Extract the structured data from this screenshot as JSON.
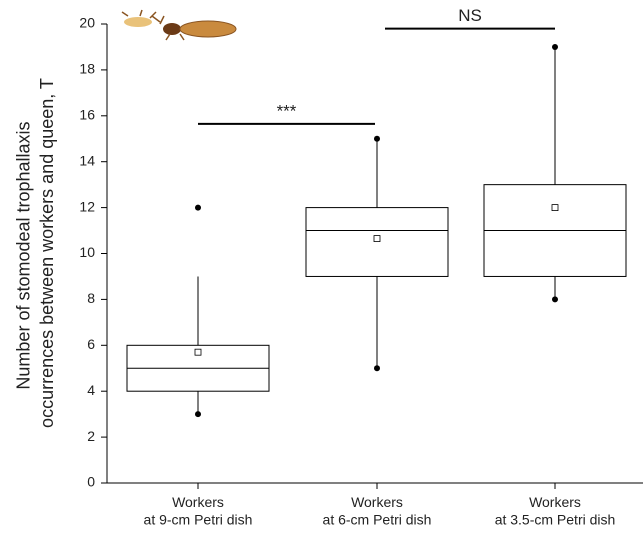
{
  "chart_data": {
    "type": "box",
    "y_label": [
      "Number of stomodeal trophallaxis",
      "occurrences between workers and queen, T"
    ],
    "categories": [
      [
        "Workers",
        "at 9-cm Petri dish"
      ],
      [
        "Workers",
        "at 6-cm Petri dish"
      ],
      [
        "Workers",
        "at 3.5-cm Petri dish"
      ]
    ],
    "boxes": [
      {
        "whisker_low": 3,
        "q1": 4,
        "median": 5,
        "q3": 6,
        "whisker_high": 9,
        "mean": 5.7,
        "points": [
          3,
          12
        ]
      },
      {
        "whisker_low": 5,
        "q1": 9,
        "median": 11,
        "q3": 12,
        "whisker_high": 15,
        "mean": 10.65,
        "points": [
          5,
          15
        ]
      },
      {
        "whisker_low": 8,
        "q1": 9,
        "median": 11,
        "q3": 13,
        "whisker_high": 19,
        "mean": 12,
        "points": [
          8,
          19
        ]
      }
    ],
    "annotations": [
      {
        "text": "***",
        "y": 15.65,
        "from": 0,
        "to": 1
      },
      {
        "text": "NS",
        "y": 19.8,
        "from": 1,
        "to": 2
      }
    ],
    "ylim": [
      0,
      20
    ],
    "yticks": [
      0,
      2,
      4,
      6,
      8,
      10,
      12,
      14,
      16,
      18,
      20
    ],
    "color": "#000000"
  }
}
